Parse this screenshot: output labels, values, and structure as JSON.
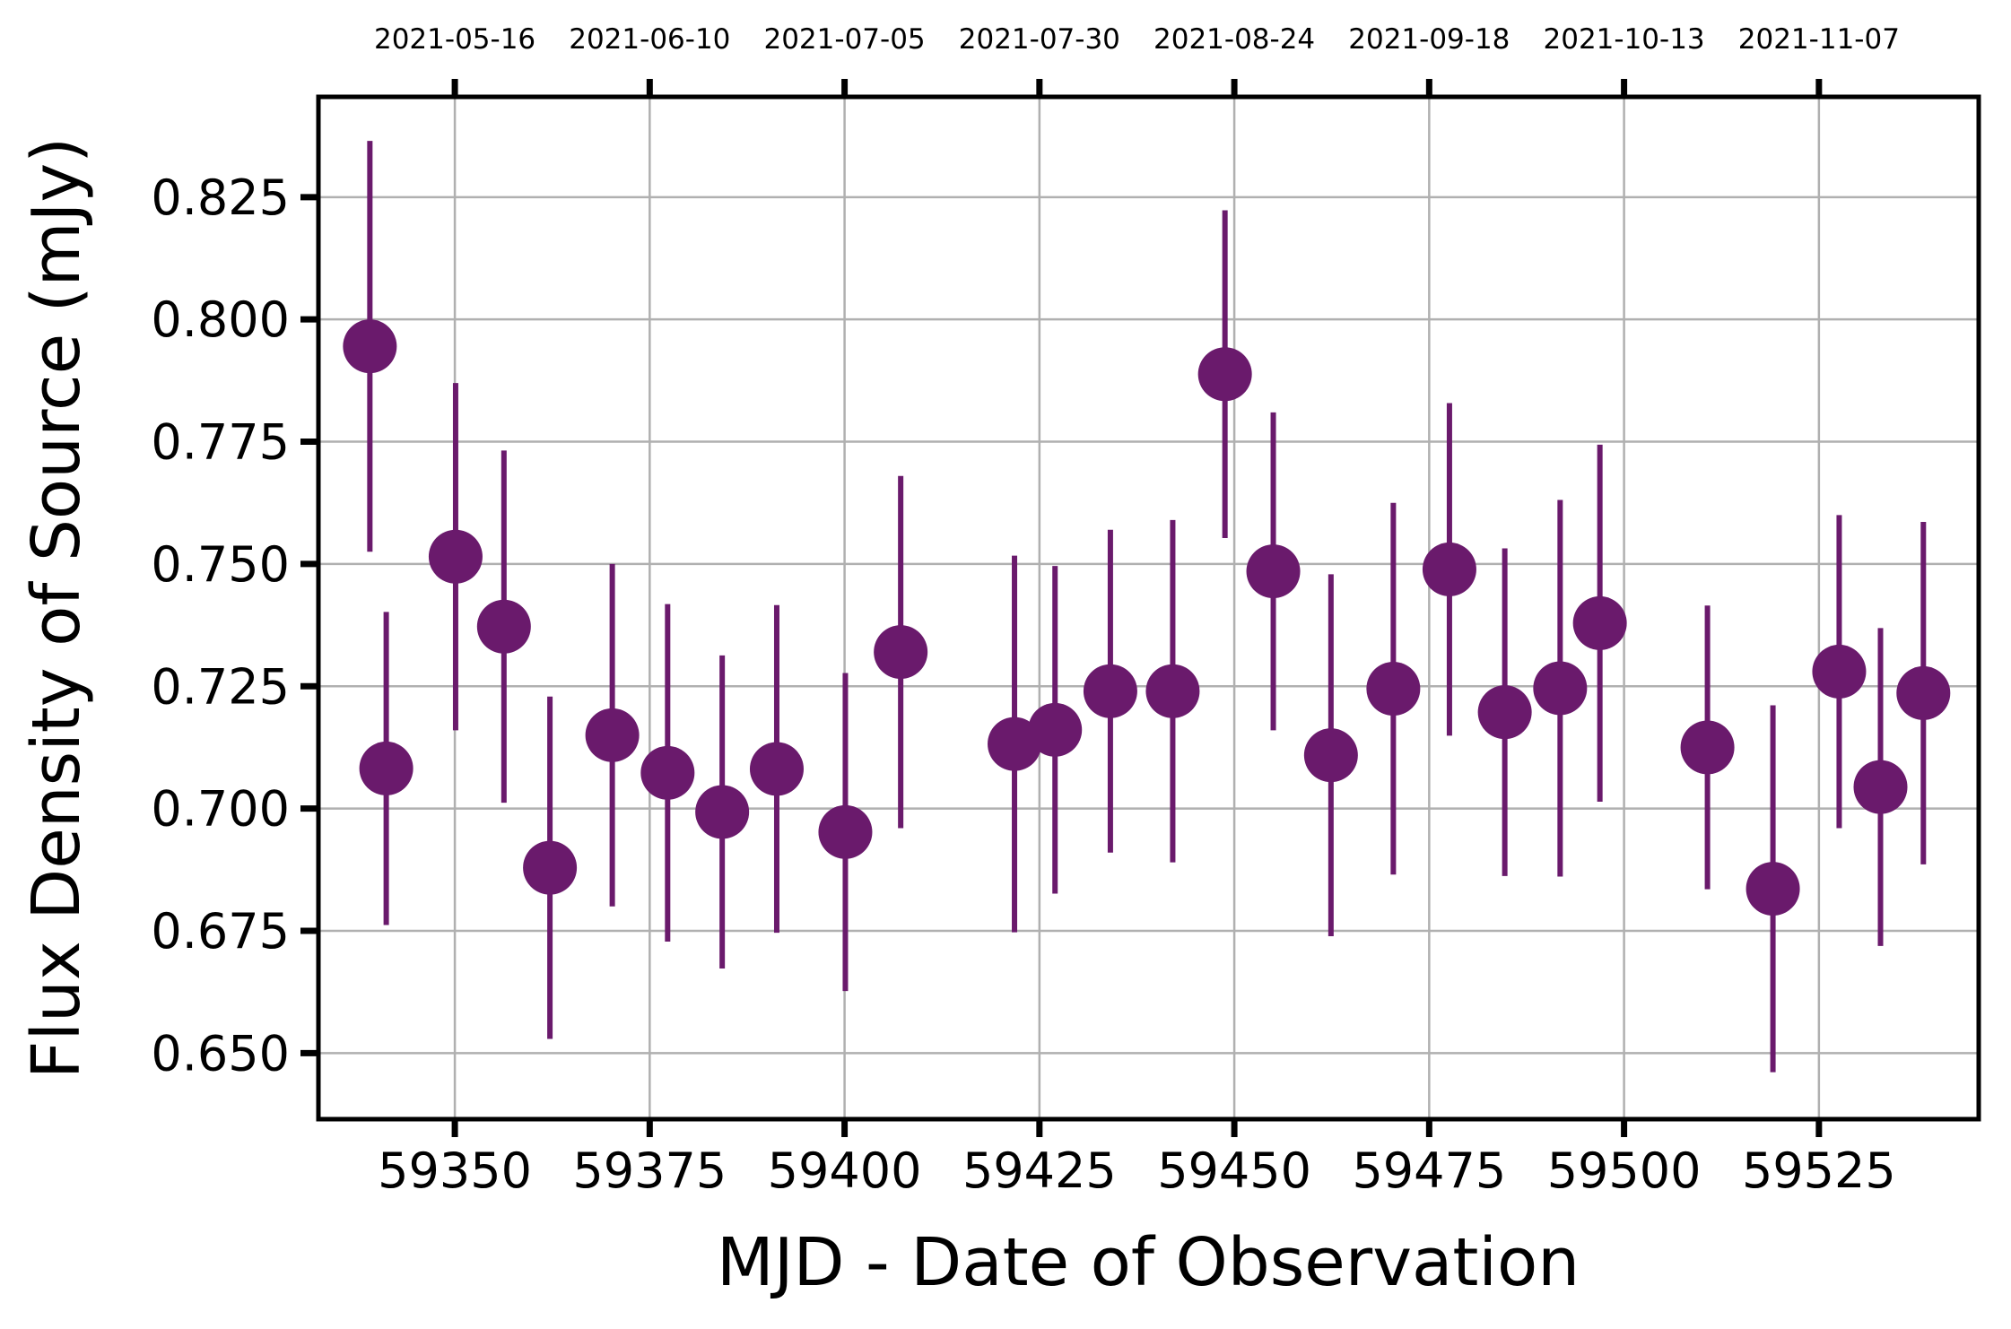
{
  "chart_data": {
    "type": "scatter",
    "xlabel": "MJD - Date of Observation",
    "ylabel": "Flux Density of Source (mJy)",
    "xlim": [
      59332.5,
      59545.5
    ],
    "ylim": [
      0.6365,
      0.8455
    ],
    "x_ticks": [
      59350,
      59375,
      59400,
      59425,
      59450,
      59475,
      59500,
      59525
    ],
    "y_ticks": [
      0.65,
      0.675,
      0.7,
      0.725,
      0.75,
      0.775,
      0.8,
      0.825
    ],
    "x_tick_labels": [
      "59350",
      "59375",
      "59400",
      "59425",
      "59450",
      "59475",
      "59500",
      "59525"
    ],
    "y_tick_labels": [
      "0.650",
      "0.675",
      "0.700",
      "0.725",
      "0.750",
      "0.775",
      "0.800",
      "0.825"
    ],
    "top_axis": {
      "ticks": [
        59350,
        59375,
        59400,
        59425,
        59450,
        59475,
        59500,
        59525
      ],
      "labels": [
        "2021-05-16",
        "2021-06-10",
        "2021-07-05",
        "2021-07-30",
        "2021-08-24",
        "2021-09-18",
        "2021-10-13",
        "2021-11-07"
      ]
    },
    "grid": true,
    "marker_color": "#6a1a6c",
    "series": [
      {
        "x": [
          59339.1,
          59341.2,
          59350.1,
          59356.3,
          59362.2,
          59370.2,
          59377.3,
          59384.3,
          59391.3,
          59400.1,
          59407.2,
          59421.8,
          59427.0,
          59434.1,
          59442.1,
          59448.8,
          59455.0,
          59462.4,
          59470.4,
          59477.6,
          59484.7,
          59491.8,
          59496.9,
          59510.7,
          59519.1,
          59527.6,
          59532.9,
          59538.4
        ],
        "y": [
          0.7945,
          0.7082,
          0.7515,
          0.7372,
          0.6879,
          0.715,
          0.7073,
          0.6993,
          0.7081,
          0.6952,
          0.732,
          0.7132,
          0.7161,
          0.724,
          0.724,
          0.7888,
          0.7485,
          0.7109,
          0.7245,
          0.7489,
          0.7197,
          0.7246,
          0.7379,
          0.7125,
          0.6836,
          0.728,
          0.7044,
          0.7236
        ],
        "yerr": [
          0.042,
          0.032,
          0.0355,
          0.036,
          0.035,
          0.035,
          0.0345,
          0.032,
          0.0335,
          0.0325,
          0.036,
          0.0385,
          0.0335,
          0.033,
          0.035,
          0.0335,
          0.0325,
          0.037,
          0.038,
          0.034,
          0.0335,
          0.0385,
          0.0365,
          0.029,
          0.0375,
          0.032,
          0.0325,
          0.035
        ]
      }
    ]
  }
}
